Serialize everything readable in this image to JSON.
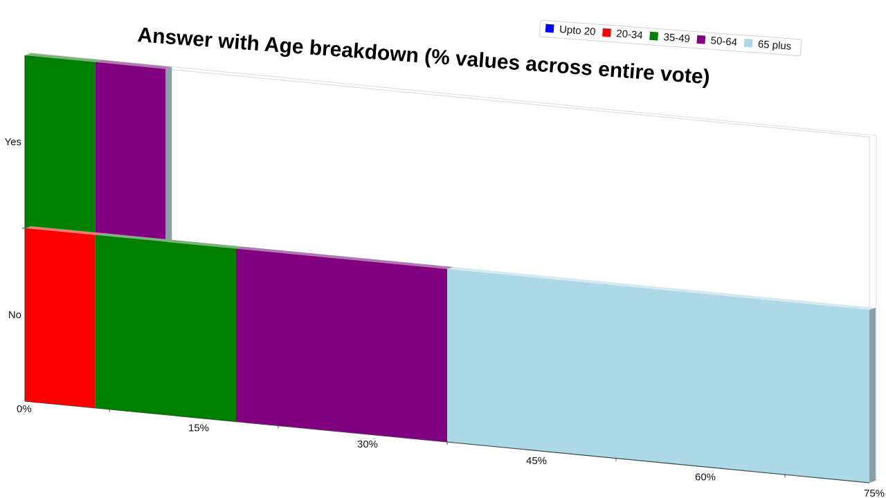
{
  "chart_data": {
    "type": "bar",
    "orientation": "horizontal",
    "stacked": true,
    "title": "Answer with Age breakdown (% values across entire vote)",
    "xlabel": "",
    "ylabel": "",
    "categories": [
      "Yes",
      "No"
    ],
    "xlim": [
      0,
      75
    ],
    "x_ticks": [
      "0%",
      "15%",
      "30%",
      "45%",
      "60%",
      "75%"
    ],
    "legend_position": "top-right",
    "grid": false,
    "series": [
      {
        "name": "Upto 20",
        "color": "#0000ff",
        "values": [
          0,
          0
        ]
      },
      {
        "name": "20-34",
        "color": "#ff0000",
        "values": [
          0,
          6.25
        ]
      },
      {
        "name": "35-49",
        "color": "#008000",
        "values": [
          6.25,
          12.5
        ]
      },
      {
        "name": "50-64",
        "color": "#800080",
        "values": [
          6.25,
          18.75
        ]
      },
      {
        "name": "65 plus",
        "color": "#add8e6",
        "values": [
          0,
          37.5
        ]
      }
    ]
  }
}
